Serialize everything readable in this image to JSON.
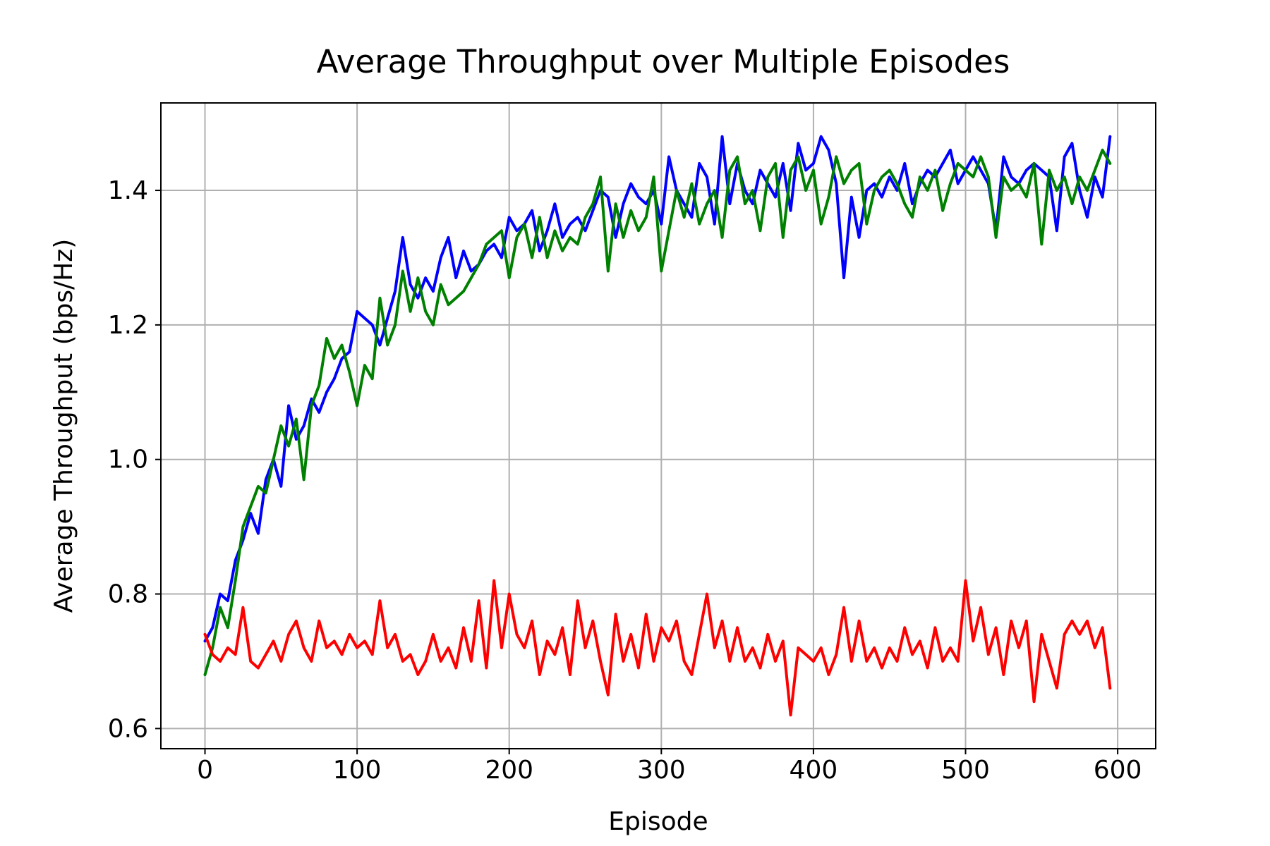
{
  "chart_data": {
    "type": "line",
    "title": "Average Throughput over Multiple Episodes",
    "xlabel": "Episode",
    "ylabel": "Average Throughput (bps/Hz)",
    "xlim": [
      -29,
      625
    ],
    "ylim": [
      0.57,
      1.53
    ],
    "xticks": [
      0,
      100,
      200,
      300,
      400,
      500,
      600
    ],
    "yticks": [
      0.6,
      0.8,
      1.0,
      1.2,
      1.4
    ],
    "ytick_labels": [
      "0.6",
      "0.8",
      "1.0",
      "1.2",
      "1.4"
    ],
    "grid": true,
    "series": [
      {
        "color": "#0000ff",
        "x": [
          0,
          5,
          10,
          15,
          20,
          25,
          30,
          35,
          40,
          45,
          50,
          55,
          60,
          65,
          70,
          75,
          80,
          85,
          90,
          95,
          100,
          105,
          110,
          115,
          120,
          125,
          130,
          135,
          140,
          145,
          150,
          155,
          160,
          165,
          170,
          175,
          180,
          185,
          190,
          195,
          200,
          205,
          210,
          215,
          220,
          225,
          230,
          235,
          240,
          245,
          250,
          255,
          260,
          265,
          270,
          275,
          280,
          285,
          290,
          295,
          300,
          305,
          310,
          315,
          320,
          325,
          330,
          335,
          340,
          345,
          350,
          355,
          360,
          365,
          370,
          375,
          380,
          385,
          390,
          395,
          400,
          405,
          410,
          415,
          420,
          425,
          430,
          435,
          440,
          445,
          450,
          455,
          460,
          465,
          470,
          475,
          480,
          485,
          490,
          495,
          500,
          505,
          510,
          515,
          520,
          525,
          530,
          535,
          540,
          545,
          550,
          555,
          560,
          565,
          570,
          575,
          580,
          585,
          590,
          595
        ],
        "values": [
          0.73,
          0.75,
          0.8,
          0.79,
          0.85,
          0.88,
          0.92,
          0.89,
          0.97,
          1.0,
          0.96,
          1.08,
          1.03,
          1.05,
          1.09,
          1.07,
          1.1,
          1.12,
          1.15,
          1.16,
          1.22,
          1.21,
          1.2,
          1.17,
          1.21,
          1.25,
          1.33,
          1.26,
          1.24,
          1.27,
          1.25,
          1.3,
          1.33,
          1.27,
          1.31,
          1.28,
          1.29,
          1.31,
          1.32,
          1.3,
          1.36,
          1.34,
          1.35,
          1.37,
          1.31,
          1.34,
          1.38,
          1.33,
          1.35,
          1.36,
          1.34,
          1.37,
          1.4,
          1.39,
          1.33,
          1.38,
          1.41,
          1.39,
          1.38,
          1.4,
          1.35,
          1.45,
          1.4,
          1.38,
          1.36,
          1.44,
          1.42,
          1.35,
          1.48,
          1.38,
          1.44,
          1.4,
          1.38,
          1.43,
          1.41,
          1.39,
          1.44,
          1.37,
          1.47,
          1.43,
          1.44,
          1.48,
          1.46,
          1.41,
          1.27,
          1.39,
          1.33,
          1.4,
          1.41,
          1.39,
          1.42,
          1.4,
          1.44,
          1.38,
          1.41,
          1.43,
          1.42,
          1.44,
          1.46,
          1.41,
          1.43,
          1.45,
          1.43,
          1.41,
          1.34,
          1.45,
          1.42,
          1.41,
          1.43,
          1.44,
          1.43,
          1.42,
          1.34,
          1.45,
          1.47,
          1.4,
          1.36,
          1.42,
          1.39,
          1.48
        ]
      },
      {
        "color": "#008000",
        "x": [
          0,
          5,
          10,
          15,
          20,
          25,
          30,
          35,
          40,
          45,
          50,
          55,
          60,
          65,
          70,
          75,
          80,
          85,
          90,
          95,
          100,
          105,
          110,
          115,
          120,
          125,
          130,
          135,
          140,
          145,
          150,
          155,
          160,
          165,
          170,
          175,
          180,
          185,
          190,
          195,
          200,
          205,
          210,
          215,
          220,
          225,
          230,
          235,
          240,
          245,
          250,
          255,
          260,
          265,
          270,
          275,
          280,
          285,
          290,
          295,
          300,
          305,
          310,
          315,
          320,
          325,
          330,
          335,
          340,
          345,
          350,
          355,
          360,
          365,
          370,
          375,
          380,
          385,
          390,
          395,
          400,
          405,
          410,
          415,
          420,
          425,
          430,
          435,
          440,
          445,
          450,
          455,
          460,
          465,
          470,
          475,
          480,
          485,
          490,
          495,
          500,
          505,
          510,
          515,
          520,
          525,
          530,
          535,
          540,
          545,
          550,
          555,
          560,
          565,
          570,
          575,
          580,
          585,
          590,
          595
        ],
        "values": [
          0.68,
          0.72,
          0.78,
          0.75,
          0.82,
          0.9,
          0.93,
          0.96,
          0.95,
          1.0,
          1.05,
          1.02,
          1.06,
          0.97,
          1.08,
          1.11,
          1.18,
          1.15,
          1.17,
          1.13,
          1.08,
          1.14,
          1.12,
          1.24,
          1.17,
          1.2,
          1.28,
          1.22,
          1.27,
          1.22,
          1.2,
          1.26,
          1.23,
          1.24,
          1.25,
          1.27,
          1.29,
          1.32,
          1.33,
          1.34,
          1.27,
          1.33,
          1.35,
          1.3,
          1.36,
          1.3,
          1.34,
          1.31,
          1.33,
          1.32,
          1.36,
          1.38,
          1.42,
          1.28,
          1.38,
          1.33,
          1.37,
          1.34,
          1.36,
          1.42,
          1.28,
          1.34,
          1.4,
          1.36,
          1.41,
          1.35,
          1.38,
          1.4,
          1.33,
          1.43,
          1.45,
          1.38,
          1.4,
          1.34,
          1.42,
          1.44,
          1.33,
          1.43,
          1.45,
          1.4,
          1.43,
          1.35,
          1.39,
          1.45,
          1.41,
          1.43,
          1.44,
          1.35,
          1.4,
          1.42,
          1.43,
          1.41,
          1.38,
          1.36,
          1.42,
          1.4,
          1.43,
          1.37,
          1.41,
          1.44,
          1.43,
          1.42,
          1.45,
          1.42,
          1.33,
          1.42,
          1.4,
          1.41,
          1.39,
          1.44,
          1.32,
          1.43,
          1.4,
          1.42,
          1.38,
          1.42,
          1.4,
          1.43,
          1.46,
          1.44
        ]
      },
      {
        "color": "#ff0000",
        "x": [
          0,
          5,
          10,
          15,
          20,
          25,
          30,
          35,
          40,
          45,
          50,
          55,
          60,
          65,
          70,
          75,
          80,
          85,
          90,
          95,
          100,
          105,
          110,
          115,
          120,
          125,
          130,
          135,
          140,
          145,
          150,
          155,
          160,
          165,
          170,
          175,
          180,
          185,
          190,
          195,
          200,
          205,
          210,
          215,
          220,
          225,
          230,
          235,
          240,
          245,
          250,
          255,
          260,
          265,
          270,
          275,
          280,
          285,
          290,
          295,
          300,
          305,
          310,
          315,
          320,
          325,
          330,
          335,
          340,
          345,
          350,
          355,
          360,
          365,
          370,
          375,
          380,
          385,
          390,
          395,
          400,
          405,
          410,
          415,
          420,
          425,
          430,
          435,
          440,
          445,
          450,
          455,
          460,
          465,
          470,
          475,
          480,
          485,
          490,
          495,
          500,
          505,
          510,
          515,
          520,
          525,
          530,
          535,
          540,
          545,
          550,
          555,
          560,
          565,
          570,
          575,
          580,
          585,
          590,
          595
        ],
        "values": [
          0.74,
          0.71,
          0.7,
          0.72,
          0.71,
          0.78,
          0.7,
          0.69,
          0.71,
          0.73,
          0.7,
          0.74,
          0.76,
          0.72,
          0.7,
          0.76,
          0.72,
          0.73,
          0.71,
          0.74,
          0.72,
          0.73,
          0.71,
          0.79,
          0.72,
          0.74,
          0.7,
          0.71,
          0.68,
          0.7,
          0.74,
          0.7,
          0.72,
          0.69,
          0.75,
          0.7,
          0.79,
          0.69,
          0.82,
          0.72,
          0.8,
          0.74,
          0.72,
          0.76,
          0.68,
          0.73,
          0.71,
          0.75,
          0.68,
          0.79,
          0.72,
          0.76,
          0.7,
          0.65,
          0.77,
          0.7,
          0.74,
          0.69,
          0.77,
          0.7,
          0.75,
          0.73,
          0.76,
          0.7,
          0.68,
          0.74,
          0.8,
          0.72,
          0.76,
          0.7,
          0.75,
          0.7,
          0.72,
          0.69,
          0.74,
          0.7,
          0.73,
          0.62,
          0.72,
          0.71,
          0.7,
          0.72,
          0.68,
          0.71,
          0.78,
          0.7,
          0.76,
          0.7,
          0.72,
          0.69,
          0.72,
          0.7,
          0.75,
          0.71,
          0.73,
          0.69,
          0.75,
          0.7,
          0.72,
          0.7,
          0.82,
          0.73,
          0.78,
          0.71,
          0.75,
          0.68,
          0.76,
          0.72,
          0.76,
          0.64,
          0.74,
          0.7,
          0.66,
          0.74,
          0.76,
          0.74,
          0.76,
          0.72,
          0.75,
          0.66
        ]
      }
    ]
  }
}
